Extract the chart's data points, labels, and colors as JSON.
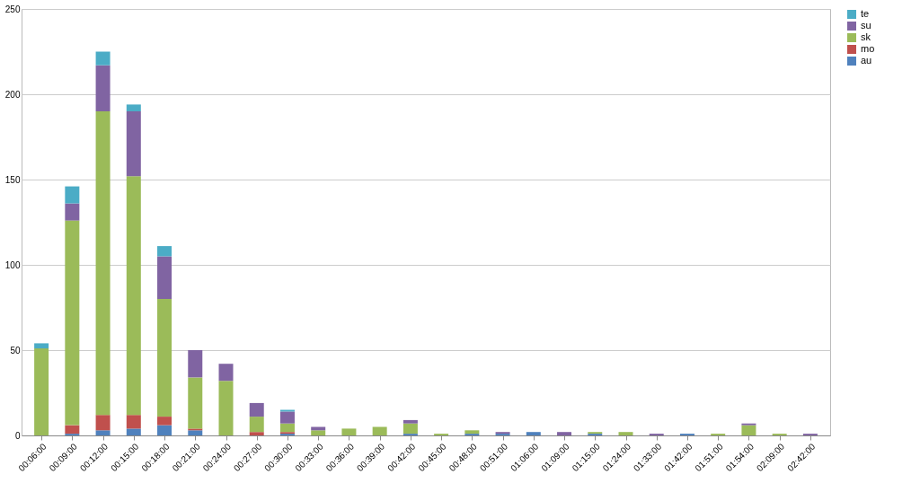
{
  "chart_data": {
    "type": "bar",
    "stacked": true,
    "categories": [
      "00:06:00",
      "00:09:00",
      "00:12:00",
      "00:15:00",
      "00:18:00",
      "00:21:00",
      "00:24:00",
      "00:27:00",
      "00:30:00",
      "00:33:00",
      "00:36:00",
      "00:39:00",
      "00:42:00",
      "00:45:00",
      "00:48:00",
      "00:51:00",
      "01:06:00",
      "01:09:00",
      "01:15:00",
      "01:24:00",
      "01:33:00",
      "01:42:00",
      "01:51:00",
      "01:54:00",
      "02:09:00",
      "02:42:00"
    ],
    "series": [
      {
        "name": "au",
        "color": "#4f81bd",
        "values": [
          0,
          1,
          3,
          4,
          6,
          3,
          0,
          0,
          1,
          0,
          0,
          0,
          1,
          0,
          1,
          1,
          2,
          0,
          1,
          0,
          0,
          1,
          0,
          0,
          0,
          0
        ]
      },
      {
        "name": "mo",
        "color": "#c0504d",
        "values": [
          0,
          5,
          9,
          8,
          5,
          1,
          0,
          2,
          1,
          0,
          0,
          0,
          0,
          0,
          0,
          0,
          0,
          0,
          0,
          0,
          0,
          0,
          0,
          0,
          0,
          0
        ]
      },
      {
        "name": "sk",
        "color": "#9bbb59",
        "values": [
          51,
          120,
          178,
          140,
          69,
          30,
          32,
          9,
          5,
          3,
          4,
          5,
          6,
          1,
          2,
          0,
          0,
          0,
          1,
          2,
          0,
          0,
          1,
          6,
          1,
          0
        ]
      },
      {
        "name": "su",
        "color": "#8064a2",
        "values": [
          0,
          10,
          27,
          38,
          25,
          16,
          10,
          8,
          7,
          2,
          0,
          0,
          2,
          0,
          0,
          1,
          0,
          2,
          0,
          0,
          1,
          0,
          0,
          1,
          0,
          1
        ]
      },
      {
        "name": "te",
        "color": "#4bacc6",
        "values": [
          3,
          10,
          8,
          4,
          6,
          0,
          0,
          0,
          1,
          0,
          0,
          0,
          0,
          0,
          0,
          0,
          0,
          0,
          0,
          0,
          0,
          0,
          0,
          0,
          0,
          0
        ]
      }
    ],
    "ylim": [
      0,
      250
    ],
    "yticks": [
      0,
      50,
      100,
      150,
      200,
      250
    ],
    "grid": "y",
    "legend": "right"
  }
}
